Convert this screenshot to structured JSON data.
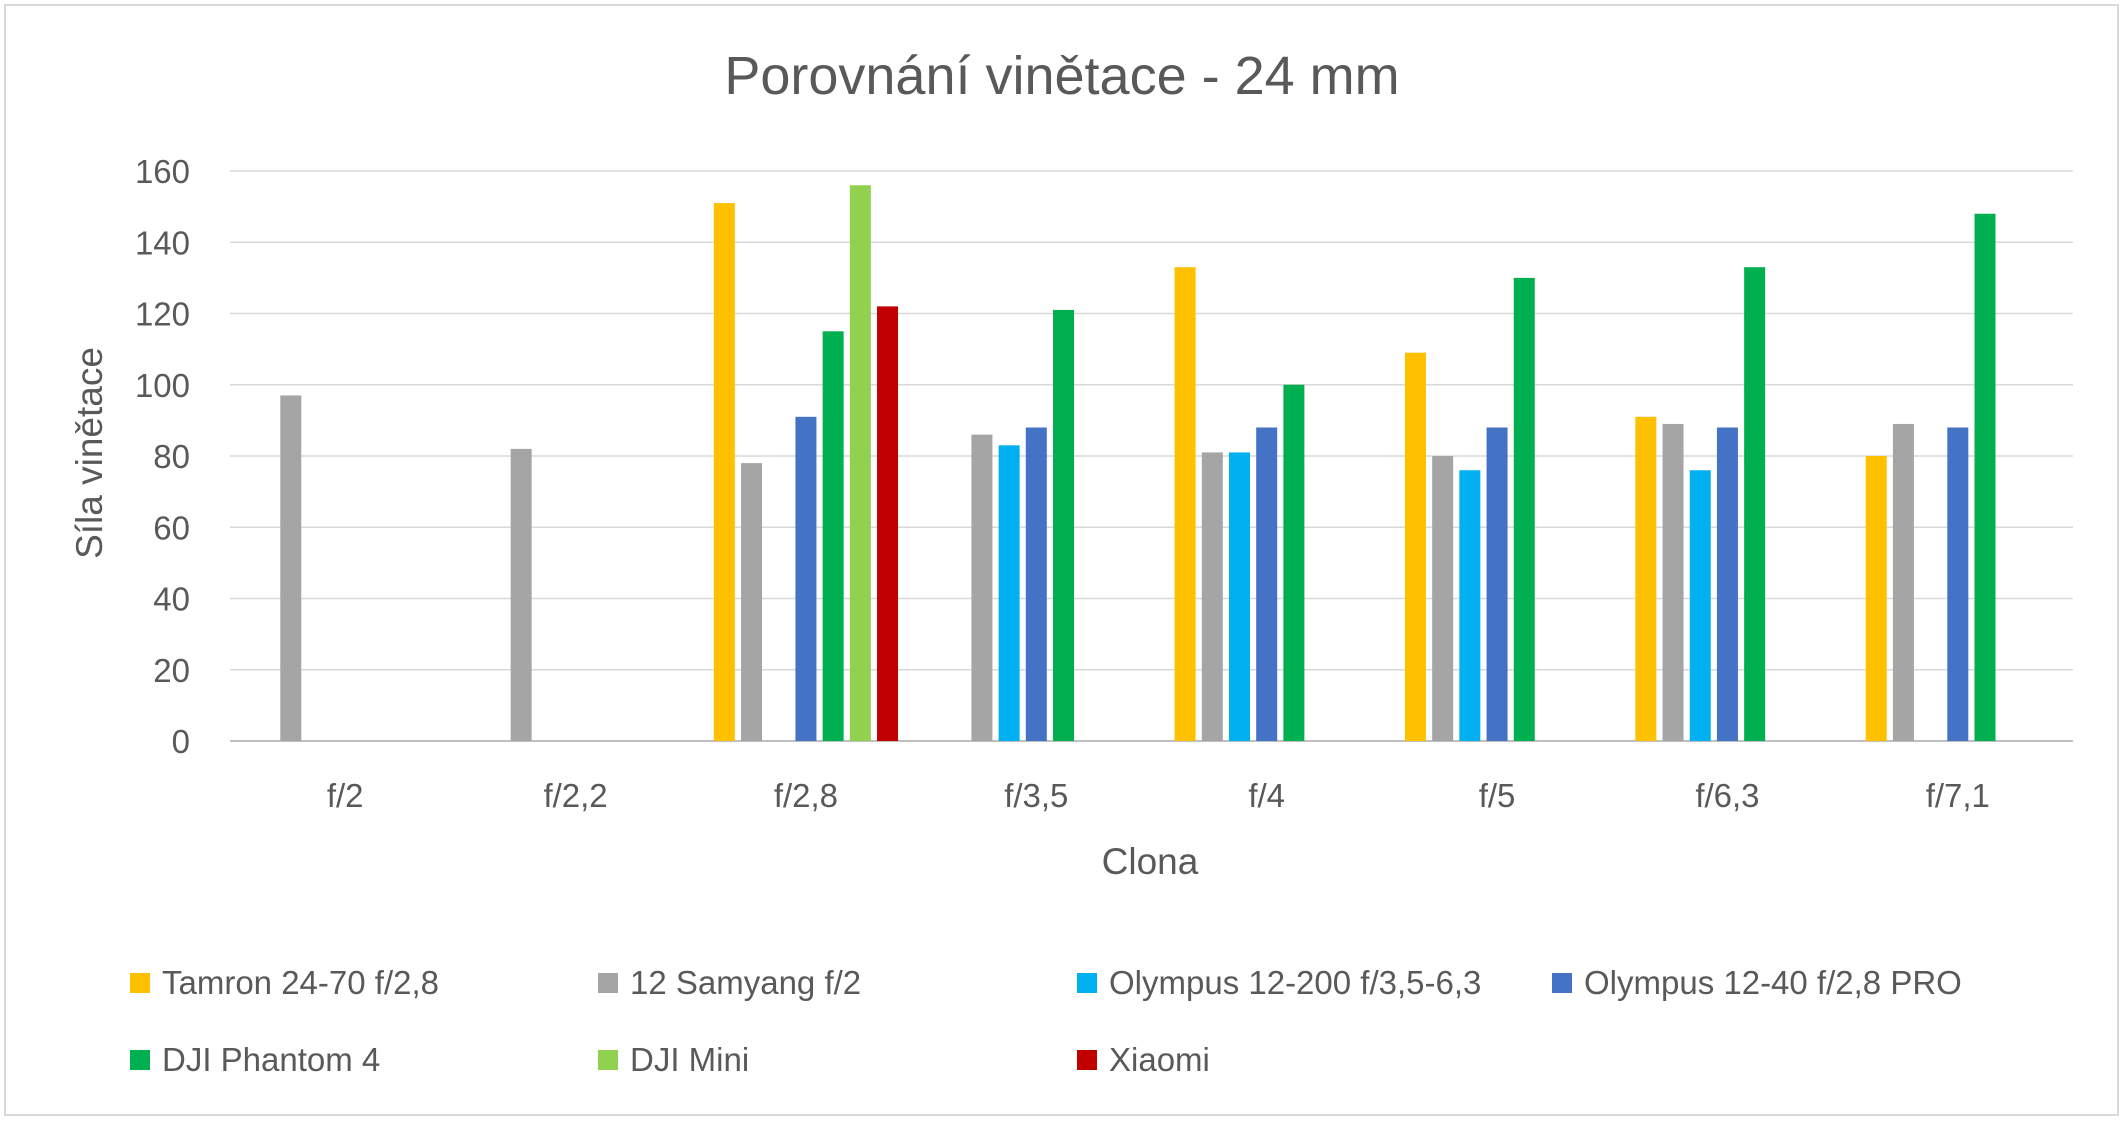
{
  "chart_data": {
    "type": "bar",
    "title": "Porovnání vinětace - 24 mm",
    "xlabel": "Clona",
    "ylabel": "Síla vinětace",
    "ylim": [
      0,
      160
    ],
    "yticks": [
      0,
      20,
      40,
      60,
      80,
      100,
      120,
      140,
      160
    ],
    "grid": true,
    "legend_position": "bottom",
    "categories": [
      "f/2",
      "f/2,2",
      "f/2,8",
      "f/3,5",
      "f/4",
      "f/5",
      "f/6,3",
      "f/7,1"
    ],
    "series": [
      {
        "name": "Tamron 24-70 f/2,8",
        "color": "#FFC000",
        "values": [
          null,
          null,
          151,
          null,
          133,
          109,
          91,
          80
        ]
      },
      {
        "name": "12 Samyang f/2",
        "color": "#A5A5A5",
        "values": [
          97,
          82,
          78,
          86,
          81,
          80,
          89,
          89
        ]
      },
      {
        "name": "Olympus 12-200 f/3,5-6,3",
        "color": "#00B0F0",
        "values": [
          null,
          null,
          null,
          83,
          81,
          76,
          76,
          null
        ]
      },
      {
        "name": "Olympus 12-40 f/2,8 PRO",
        "color": "#4472C4",
        "values": [
          null,
          null,
          91,
          88,
          88,
          88,
          88,
          88
        ]
      },
      {
        "name": "DJI Phantom 4",
        "color": "#00B050",
        "values": [
          null,
          null,
          115,
          121,
          100,
          130,
          133,
          148
        ]
      },
      {
        "name": "DJI Mini",
        "color": "#92D050",
        "values": [
          null,
          null,
          156,
          null,
          null,
          null,
          null,
          null
        ]
      },
      {
        "name": "Xiaomi",
        "color": "#C00000",
        "values": [
          null,
          null,
          122,
          null,
          null,
          null,
          null,
          null
        ]
      }
    ]
  }
}
